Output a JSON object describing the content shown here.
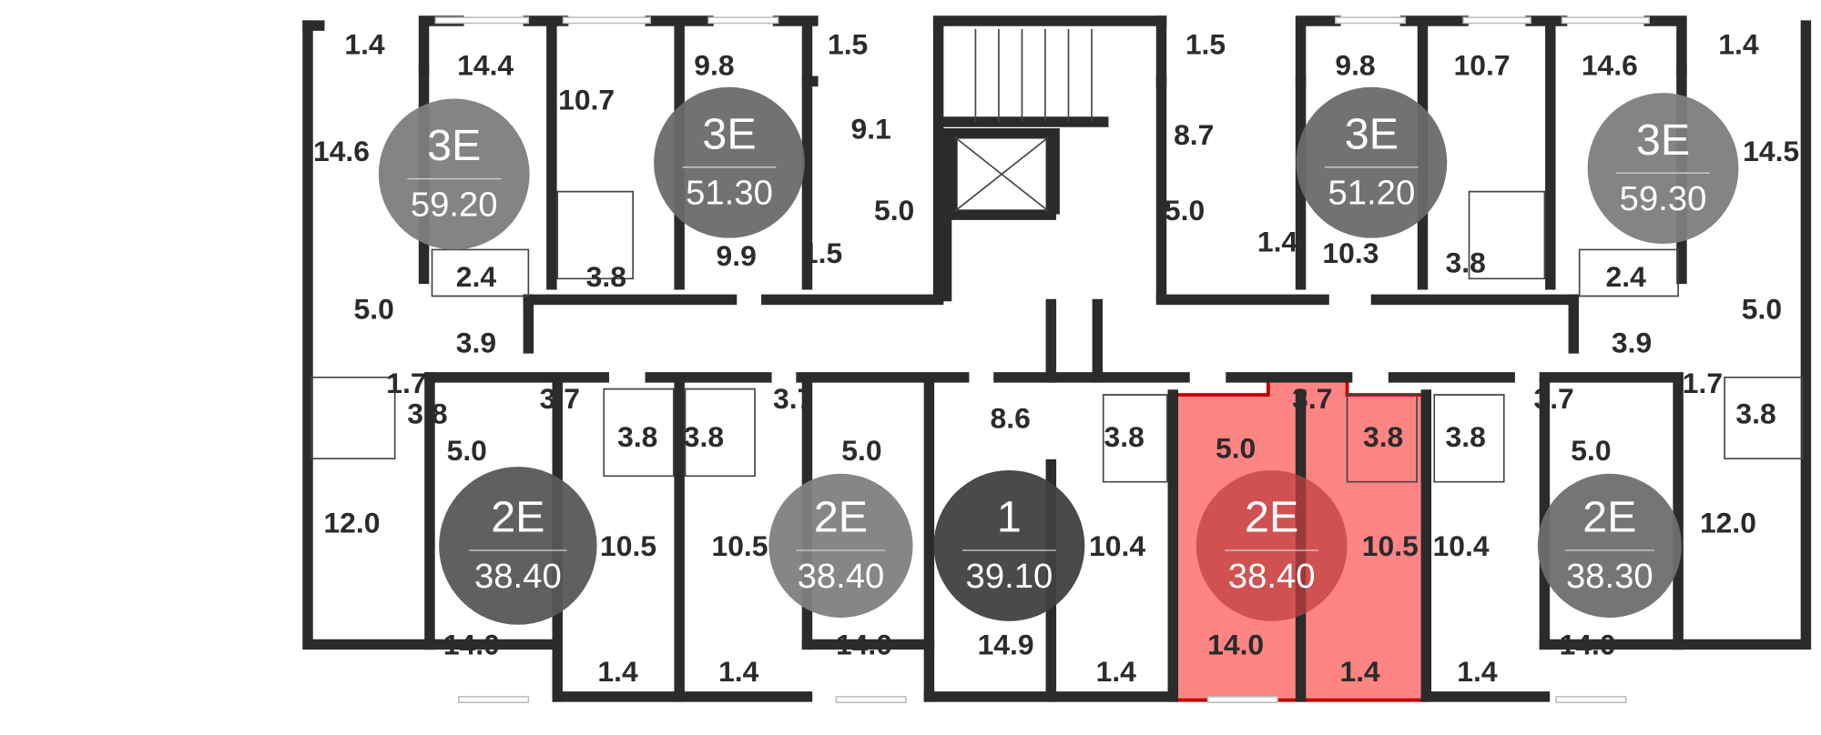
{
  "colors": {
    "wall": "#2b2b2b",
    "highlight_fill": "#ff6e6e",
    "highlight_stroke": "#c40000",
    "apartment_badge_light": "#7d7d7d",
    "apartment_badge_mid": "#6a6a6a",
    "apartment_badge_dark": "#404040"
  },
  "apartments": [
    {
      "type": "3E",
      "area": "59.20",
      "highlighted": false,
      "badge_color": "#7d7d7d"
    },
    {
      "type": "3E",
      "area": "51.30",
      "highlighted": false,
      "badge_color": "#6a6a6a"
    },
    {
      "type": "3E",
      "area": "51.20",
      "highlighted": false,
      "badge_color": "#6a6a6a"
    },
    {
      "type": "3E",
      "area": "59.30",
      "highlighted": false,
      "badge_color": "#7d7d7d"
    },
    {
      "type": "2E",
      "area": "38.40",
      "highlighted": false,
      "badge_color": "#575757"
    },
    {
      "type": "2E",
      "area": "38.40",
      "highlighted": false,
      "badge_color": "#808080"
    },
    {
      "type": "1",
      "area": "39.10",
      "highlighted": false,
      "badge_color": "#404040"
    },
    {
      "type": "2E",
      "area": "38.40",
      "highlighted": true,
      "badge_color": "#c24040"
    },
    {
      "type": "2E",
      "area": "38.30",
      "highlighted": false,
      "badge_color": "#6e6e6e"
    }
  ],
  "rooms": [
    "1.4",
    "14.4",
    "10.7",
    "9.8",
    "1.5",
    "9.1",
    "14.6",
    "5.0",
    "3.8",
    "2.4",
    "9.9",
    "1.5",
    "5.0",
    "3.9",
    "1.5",
    "9.8",
    "10.7",
    "14.6",
    "1.4",
    "8.7",
    "14.5",
    "5.0",
    "1.4",
    "10.3",
    "3.8",
    "2.4",
    "5.0",
    "3.9",
    "1.7",
    "3.8",
    "3.7",
    "5.0",
    "3.8",
    "3.8",
    "3.7",
    "5.0",
    "8.6",
    "3.8",
    "12.0",
    "10.5",
    "10.5",
    "10.4",
    "14.0",
    "1.4",
    "1.4",
    "14.0",
    "14.9",
    "1.4",
    "3.7",
    "5.0",
    "3.8",
    "10.5",
    "14.0",
    "1.4",
    "3.8",
    "3.7",
    "5.0",
    "10.4",
    "1.4",
    "14.0",
    "1.7",
    "3.8",
    "12.0"
  ]
}
